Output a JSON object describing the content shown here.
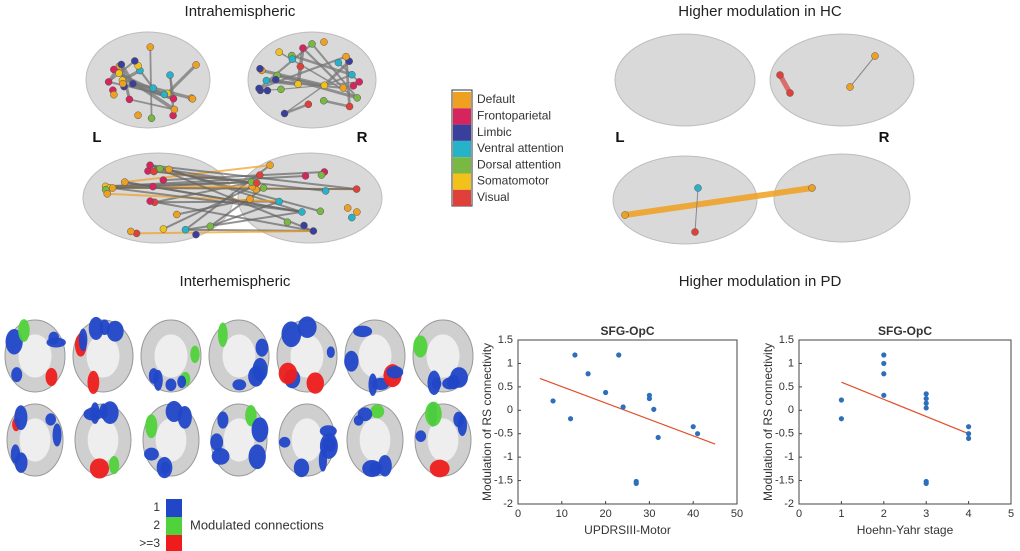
{
  "panels": {
    "intrahemispheric": "Intrahemispheric",
    "interhemispheric": "Interhemispheric",
    "hc": "Higher modulation in HC",
    "pd": "Higher modulation in PD",
    "left": "L",
    "right": "R",
    "left2": "L",
    "right2": "R"
  },
  "network_legend": [
    {
      "name": "Default",
      "color": "#f0a020"
    },
    {
      "name": "Frontoparietal",
      "color": "#d6245e"
    },
    {
      "name": "Limbic",
      "color": "#3b3f9c"
    },
    {
      "name": "Ventral attention",
      "color": "#26b3c9"
    },
    {
      "name": "Dorsal attention",
      "color": "#79b843"
    },
    {
      "name": "Somatomotor",
      "color": "#f2c21a"
    },
    {
      "name": "Visual",
      "color": "#e0403a"
    }
  ],
  "slice_legend": {
    "title": "Modulated connections",
    "items": [
      {
        "label": "1",
        "color": "#2147c8"
      },
      {
        "label": "2",
        "color": "#4fd23a"
      },
      {
        "label": ">=3",
        "color": "#ee1c1c"
      }
    ]
  },
  "chart_data": [
    {
      "type": "scatter",
      "title": "SFG-OpC",
      "x_label": "UPDRSIII-Motor",
      "y_label": "Modulation of RS connectivity",
      "x": [
        8,
        12,
        13,
        16,
        20,
        23,
        24,
        27,
        27,
        30,
        30,
        31,
        32,
        40,
        41
      ],
      "values": [
        0.2,
        -0.18,
        1.18,
        0.78,
        0.38,
        1.18,
        0.07,
        -1.52,
        -1.56,
        0.25,
        0.32,
        0.02,
        -0.58,
        -0.35,
        -0.5
      ],
      "color": "#2d6fba",
      "fit": {
        "x": [
          5,
          45
        ],
        "values": [
          0.68,
          -0.72
        ],
        "color": "#e0502a"
      },
      "xlim": [
        0,
        50
      ],
      "xticks": [
        0,
        10,
        20,
        30,
        40,
        50
      ],
      "ylim": [
        -2,
        1.5
      ],
      "yticks": [
        -2,
        -1.5,
        -1,
        -0.5,
        0,
        0.5,
        1,
        1.5
      ]
    },
    {
      "type": "scatter",
      "title": "SFG-OpC",
      "x_label": "Hoehn-Yahr stage",
      "y_label": "Modulation of RS connectivity",
      "x": [
        1,
        1,
        2,
        2,
        2,
        2,
        3,
        3,
        3,
        3,
        3,
        3,
        4,
        4,
        4
      ],
      "values": [
        0.22,
        -0.18,
        1.18,
        1.0,
        0.78,
        0.32,
        0.35,
        0.25,
        0.15,
        0.05,
        -1.52,
        -1.56,
        -0.35,
        -0.5,
        -0.6
      ],
      "color": "#2d6fba",
      "fit": {
        "x": [
          1,
          4
        ],
        "values": [
          0.6,
          -0.5
        ],
        "color": "#e0502a"
      },
      "xlim": [
        0,
        5
      ],
      "xticks": [
        0,
        1,
        2,
        3,
        4,
        5
      ],
      "ylim": [
        -2,
        1.5
      ],
      "yticks": [
        -2,
        -1.5,
        -1,
        -0.5,
        0,
        0.5,
        1,
        1.5
      ]
    }
  ]
}
